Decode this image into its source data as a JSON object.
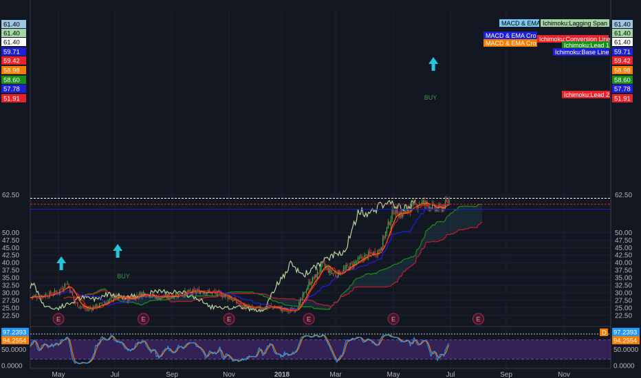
{
  "chart_data": {
    "type": "candlestick",
    "symbol_last_price": 61.4,
    "y_ticks": [
      "62.50",
      "50.00",
      "47.50",
      "45.00",
      "42.50",
      "40.00",
      "37.50",
      "35.00",
      "32.50",
      "30.00",
      "27.50",
      "25.00",
      "22.50"
    ],
    "y_tick_values": [
      62.5,
      50,
      47.5,
      45,
      42.5,
      40,
      37.5,
      35,
      32.5,
      30,
      27.5,
      25,
      22.5
    ],
    "x_ticks": [
      "May",
      "Jul",
      "Sep",
      "Nov",
      "2018",
      "Mar",
      "May",
      "Jul",
      "Sep",
      "Nov"
    ],
    "price_markers": [
      {
        "label": "61.40",
        "value": 61.4,
        "bg": "#9ec5e3",
        "fg": "#000000"
      },
      {
        "label": "61.40",
        "value": 61.4,
        "bg": "#a5d6a7",
        "fg": "#000000"
      },
      {
        "label": "61.40",
        "value": 61.4,
        "bg": "#ffffff",
        "fg": "#000000"
      },
      {
        "label": "59.71",
        "value": 59.71,
        "bg": "#1f1fd6",
        "fg": "#ffffff"
      },
      {
        "label": "59.42",
        "value": 59.42,
        "bg": "#e8222a",
        "fg": "#ffffff"
      },
      {
        "label": "58.98",
        "value": 58.98,
        "bg": "#f57c00",
        "fg": "#ffffff"
      },
      {
        "label": "58.60",
        "value": 58.6,
        "bg": "#1b8f1b",
        "fg": "#ffffff"
      },
      {
        "label": "57.78",
        "value": 57.78,
        "bg": "#1f1fd6",
        "fg": "#ffffff"
      },
      {
        "label": "51.91",
        "value": 51.91,
        "bg": "#e8222a",
        "fg": "#ffffff"
      }
    ],
    "series_tags": [
      {
        "text": "MACD & EMA I",
        "bg": "#7ec8f0",
        "fg": "#000000"
      },
      {
        "text": "Ichimoku:Lagging Span",
        "bg": "#a5d6a7",
        "fg": "#000000"
      },
      {
        "text": "MACD & EMA Cro",
        "bg": "#1f1fd6",
        "fg": "#ffffff"
      },
      {
        "text": "Ichimoku:Conversion Line",
        "bg": "#e8222a",
        "fg": "#ffffff"
      },
      {
        "text": "MACD & EMA Cro",
        "bg": "#f57c00",
        "fg": "#ffffff"
      },
      {
        "text": "Ichimoku:Lead 1",
        "bg": "#1b8f1b",
        "fg": "#ffffff"
      },
      {
        "text": "Ichimoku:Base Line",
        "bg": "#1f1fd6",
        "fg": "#ffffff"
      },
      {
        "text": "Ichimoku:Lead 2",
        "bg": "#e8222a",
        "fg": "#ffffff"
      }
    ],
    "signals": [
      {
        "label": "BUY",
        "color": "#2e9e3a"
      },
      {
        "label": "BUY",
        "color": "#2e9e3a"
      }
    ],
    "earnings_marker": "E",
    "oscillator": {
      "y_ticks": [
        "50.0000",
        "0.0000"
      ],
      "y_tick_values": [
        50,
        0
      ],
      "markers": [
        {
          "label": "97.2393",
          "value": 97.2393,
          "bg": "#2196f3",
          "fg": "#ffffff"
        },
        {
          "label": "94.2554",
          "value": 94.2554,
          "bg": "#f57c00",
          "fg": "#ffffff"
        }
      ],
      "badge": "D"
    },
    "colors": {
      "up": "#4caf50",
      "down": "#e8434a",
      "lagging": "#b9d89a",
      "conversion": "#e8222a",
      "base": "#1f1fd6",
      "lead1": "#1b8f1b",
      "lead2": "#c41e2a",
      "ema_fast": "#f57c00",
      "stoch_k": "#2196f3",
      "stoch_d": "#f57c00",
      "band": "#4b2a7a"
    }
  }
}
